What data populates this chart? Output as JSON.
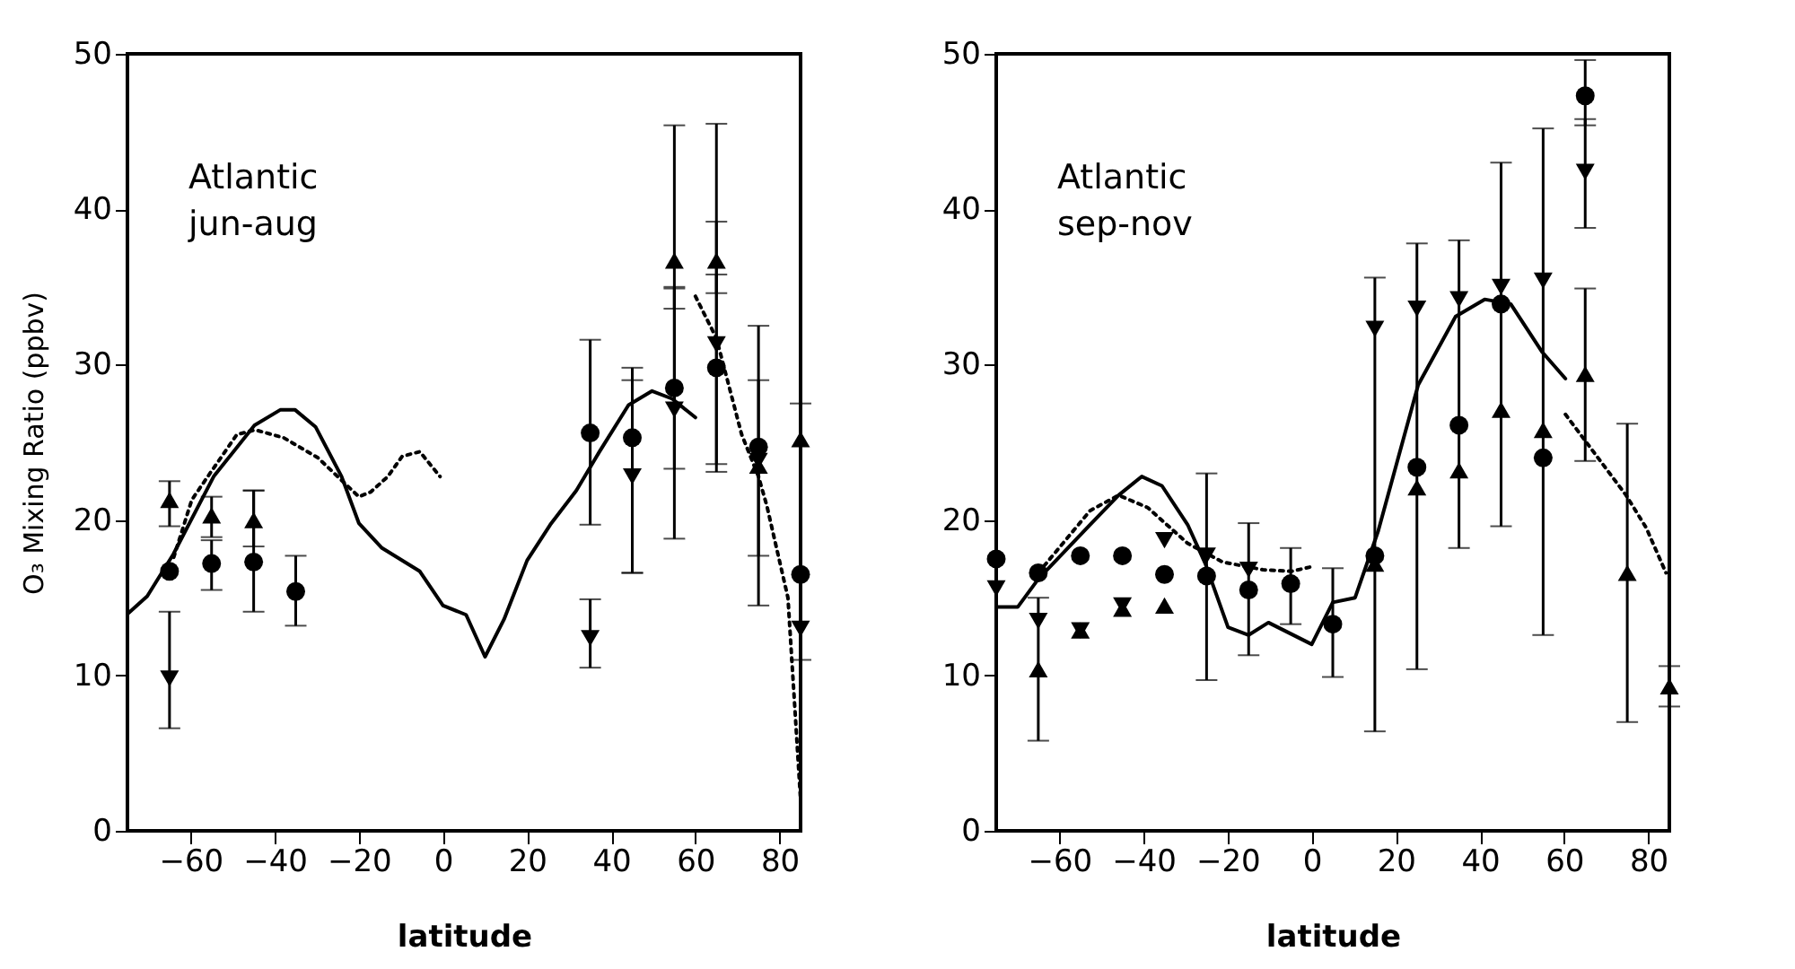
{
  "chart_data": [
    {
      "type": "scatter",
      "xlabel": "latitude",
      "ylabel": "O₃ Mixing Ratio (ppbv)",
      "annotations": [
        "Atlantic\njun-aug"
      ],
      "xlim": [
        -75,
        85
      ],
      "xticks": [
        -60,
        -40,
        -20,
        0,
        20,
        40,
        60,
        80
      ],
      "ylim": [
        0,
        50
      ],
      "yticks": [
        0,
        10,
        20,
        30,
        40,
        50
      ],
      "grid": false,
      "series": [
        {
          "type": "line",
          "line_style": "solid",
          "color": "#000000",
          "x": [
            -74.8,
            -70.3,
            -64.1,
            -54.5,
            -44.8,
            -38.6,
            -35.2,
            -30.3,
            -24.1,
            -20,
            -14.5,
            -5.5,
            0,
            5.5,
            10,
            14.5,
            20,
            25.5,
            31.7,
            37.2,
            44.1,
            49.7,
            54.5,
            60
          ],
          "values": [
            14.0,
            15.1,
            17.8,
            22.8,
            26.1,
            27.1,
            27.1,
            26.0,
            22.8,
            19.8,
            18.2,
            16.7,
            14.5,
            13.9,
            11.2,
            13.6,
            17.4,
            19.7,
            21.9,
            24.4,
            27.4,
            28.3,
            27.8,
            26.6
          ]
        },
        {
          "type": "line",
          "line_style": "dotted",
          "color": "#000000",
          "x": [
            -64,
            -59.7,
            -55.9,
            -49,
            -44.6,
            -37.9,
            -29.7,
            -20,
            -17.2,
            -13.1,
            -9.7,
            -5.5,
            -0.7
          ],
          "values": [
            17.6,
            21.3,
            22.8,
            25.5,
            25.8,
            25.3,
            24.0,
            21.5,
            21.8,
            22.8,
            24.1,
            24.4,
            22.8
          ]
        },
        {
          "type": "line",
          "line_style": "dotted",
          "color": "#000000",
          "x": [
            60,
            65,
            71,
            75,
            77,
            82,
            85
          ],
          "values": [
            34.4,
            31.7,
            25.5,
            22.8,
            20.9,
            15,
            2
          ]
        },
        {
          "type": "scatter",
          "marker": "circle",
          "color": "#000000",
          "x": [
            -65,
            -55,
            -45,
            -35,
            35,
            45,
            55,
            65,
            75,
            85
          ],
          "values": [
            16.7,
            17.2,
            17.3,
            15.4,
            25.6,
            25.3,
            28.5,
            29.8,
            24.7,
            16.5
          ],
          "errors": [
            null,
            [
              15.5,
              18.7
            ],
            [
              14.1,
              21.9
            ],
            [
              13.2,
              17.7
            ],
            [
              19.7,
              31.6
            ],
            [
              16.6,
              29.8
            ],
            [
              18.8,
              45.4
            ],
            [
              23.1,
              45.5
            ],
            [
              14.5,
              32.5
            ],
            [
              11,
              27.5
            ]
          ]
        },
        {
          "type": "scatter",
          "marker": "triangle-up",
          "color": "#000000",
          "x": [
            -65,
            -55,
            -45,
            55,
            65,
            75,
            85
          ],
          "values": [
            21.3,
            20.3,
            20.0,
            36.7,
            36.7,
            23.5,
            25.2
          ],
          "errors": [
            [
              19.6,
              22.5
            ],
            [
              18.9,
              21.5
            ],
            [
              18.3,
              21.9
            ],
            [
              33.6,
              35.0
            ],
            [
              34.6,
              39.2
            ],
            [
              17.7,
              29.0
            ],
            null
          ]
        },
        {
          "type": "scatter",
          "marker": "triangle-down",
          "color": "#000000",
          "x": [
            -65,
            35,
            45,
            55,
            65,
            75,
            85
          ],
          "values": [
            9.8,
            12.4,
            22.8,
            27.1,
            31.3,
            23.8,
            13
          ],
          "errors": [
            [
              6.6,
              14.1
            ],
            [
              10.5,
              14.9
            ],
            [
              16.6,
              29.0
            ],
            [
              23.3,
              34.9
            ],
            [
              23.6,
              35.8
            ],
            null,
            null
          ]
        }
      ]
    },
    {
      "type": "scatter",
      "xlabel": "latitude",
      "annotations": [
        "Atlantic\nsep-nov"
      ],
      "xlim": [
        -75,
        85
      ],
      "xticks": [
        -60,
        -40,
        -20,
        0,
        20,
        40,
        60,
        80
      ],
      "ylim": [
        0,
        50
      ],
      "yticks": [
        0,
        10,
        20,
        30,
        40,
        50
      ],
      "grid": false,
      "series": [
        {
          "type": "line",
          "line_style": "solid",
          "color": "#000000",
          "x": [
            -75,
            -69.9,
            -65,
            -52.7,
            -45.9,
            -40.4,
            -35.6,
            -29.5,
            -25.3,
            -19.9,
            -15,
            -10.3,
            0,
            5,
            10.3,
            15.8,
            25.3,
            34.2,
            41.1,
            47.3,
            54.8,
            60.3
          ],
          "values": [
            14.4,
            14.4,
            16.2,
            19.7,
            21.6,
            22.8,
            22.2,
            19.7,
            17.2,
            13.1,
            12.6,
            13.4,
            12.0,
            14.7,
            15.0,
            19.3,
            28.7,
            33.1,
            34.2,
            33.9,
            30.8,
            29.1
          ]
        },
        {
          "type": "line",
          "line_style": "dotted",
          "color": "#000000",
          "x": [
            -65,
            -52.7,
            -45.9,
            -39,
            -29.5,
            -21.2,
            -11.6,
            -4.8,
            0
          ],
          "values": [
            16.6,
            20.6,
            21.6,
            20.8,
            18.5,
            17.3,
            16.8,
            16.7,
            17.0
          ]
        },
        {
          "type": "line",
          "line_style": "dotted",
          "color": "#000000",
          "x": [
            60.3,
            74.7,
            79.5,
            84.2
          ],
          "values": [
            26.8,
            21.6,
            19.5,
            16.6
          ]
        },
        {
          "type": "scatter",
          "marker": "circle",
          "color": "#000000",
          "x": [
            -75,
            -65,
            -55,
            -45,
            -35,
            -25,
            -15,
            -5,
            5,
            15,
            25,
            35,
            45,
            55,
            65
          ],
          "values": [
            17.5,
            16.6,
            17.7,
            17.7,
            16.5,
            16.4,
            15.5,
            15.9,
            13.3,
            17.7,
            23.4,
            26.1,
            33.9,
            24.0,
            47.3
          ],
          "errors": [
            null,
            null,
            null,
            null,
            null,
            [
              9.7,
              23.0
            ],
            [
              11.3,
              19.8
            ],
            [
              13.3,
              18.2
            ],
            [
              9.9,
              16.9
            ],
            [
              6.4,
              35.6
            ],
            [
              10.4,
              37.8
            ],
            [
              18.2,
              38.0
            ],
            [
              19.6,
              43.0
            ],
            [
              12.6,
              45.2
            ],
            [
              45.4,
              49.6
            ]
          ]
        },
        {
          "type": "scatter",
          "marker": "triangle-up",
          "color": "#000000",
          "x": [
            -65,
            -55,
            -45,
            -35,
            15,
            25,
            35,
            45,
            55,
            65,
            75,
            85
          ],
          "values": [
            10.4,
            12.9,
            14.3,
            14.5,
            17.2,
            22.1,
            23.2,
            27.1,
            25.8,
            29.4,
            16.6,
            9.3
          ],
          "errors": [
            [
              5.8,
              15.0
            ],
            null,
            null,
            null,
            null,
            null,
            null,
            null,
            null,
            [
              23.8,
              34.9
            ],
            [
              7.0,
              26.2
            ],
            [
              8.0,
              10.6
            ]
          ]
        },
        {
          "type": "scatter",
          "marker": "triangle-down",
          "color": "#000000",
          "x": [
            -75,
            -65,
            -55,
            -45,
            -35,
            -25,
            -15,
            15,
            25,
            35,
            45,
            55,
            65
          ],
          "values": [
            15.6,
            13.5,
            12.9,
            14.5,
            18.7,
            17.7,
            16.8,
            32.3,
            33.6,
            34.2,
            35.0,
            35.4,
            42.4
          ],
          "errors": [
            null,
            null,
            null,
            null,
            null,
            null,
            null,
            null,
            null,
            null,
            null,
            null,
            [
              38.8,
              45.8
            ]
          ]
        }
      ]
    }
  ]
}
